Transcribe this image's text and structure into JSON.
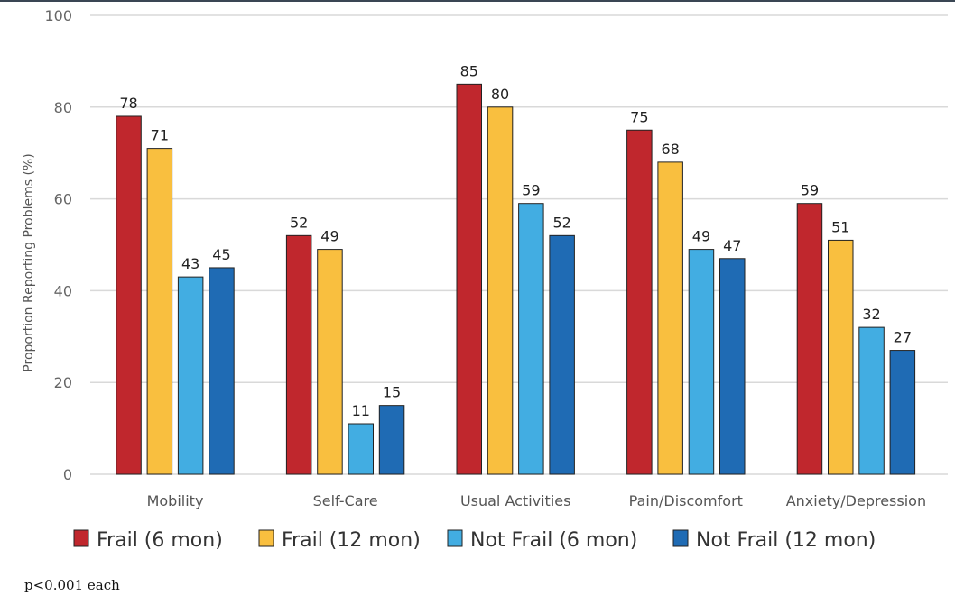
{
  "chart_data": {
    "type": "bar",
    "title": "",
    "xlabel": "",
    "ylabel": "Proportion Reporting Problems (%)",
    "ylim": [
      0,
      100
    ],
    "yticks": [
      0,
      20,
      40,
      60,
      80,
      100
    ],
    "grid": true,
    "legend_position": "bottom",
    "categories": [
      "Mobility",
      "Self-Care",
      "Usual Activities",
      "Pain/Discomfort",
      "Anxiety/Depression"
    ],
    "series": [
      {
        "name": "Frail (6 mon)",
        "color": "#c0272d",
        "values": [
          78,
          52,
          85,
          75,
          59
        ]
      },
      {
        "name": "Frail (12 mon)",
        "color": "#f9bf3f",
        "values": [
          71,
          49,
          80,
          68,
          51
        ]
      },
      {
        "name": "Not Frail (6 mon)",
        "color": "#42ade2",
        "values": [
          43,
          11,
          59,
          49,
          32
        ]
      },
      {
        "name": "Not Frail (12 mon)",
        "color": "#1f6bb4",
        "values": [
          45,
          15,
          52,
          47,
          27
        ]
      }
    ],
    "footnote": "p<0.001 each"
  }
}
